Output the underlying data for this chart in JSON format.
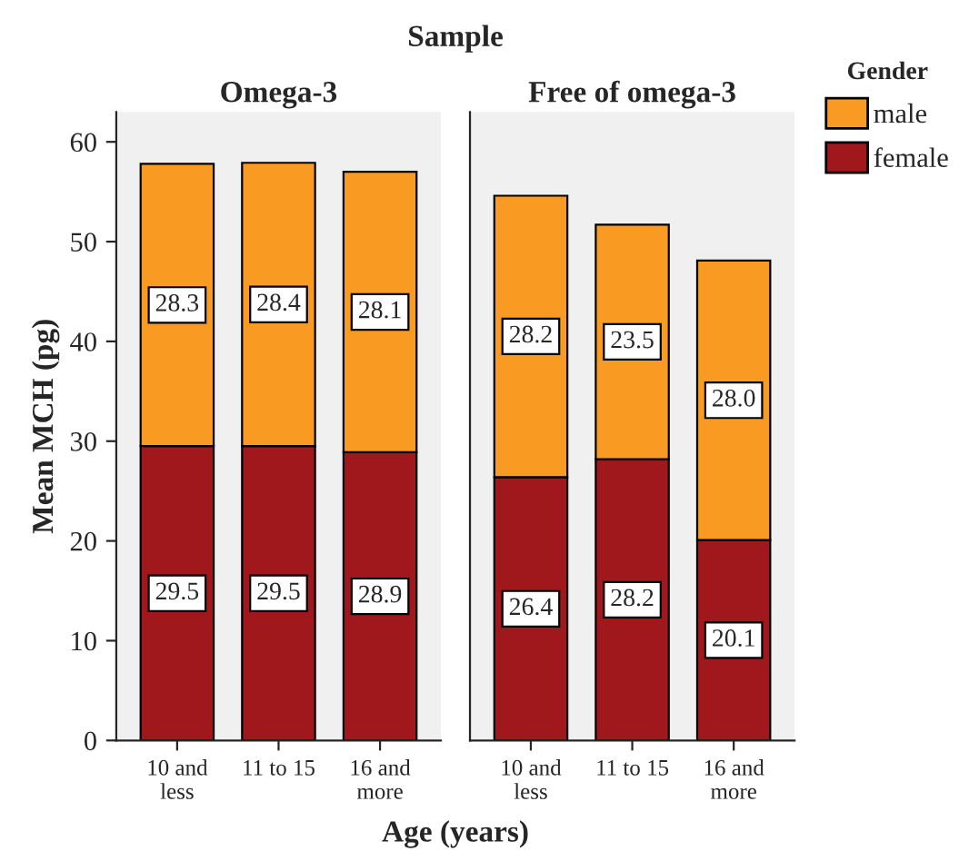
{
  "chart_data": [
    {
      "type": "bar",
      "title": "Omega-3",
      "annotations": [
        "Sample"
      ],
      "xlabel": "Age (years)",
      "ylabel": "Mean MCH (pg)",
      "stacked": true,
      "data_labels": true,
      "grid": false,
      "categories": [
        "10 and\nless",
        "11 to 15",
        "16 and\nmore"
      ],
      "ylim": [
        0,
        63
      ],
      "yticks": [
        0,
        10,
        20,
        30,
        40,
        50,
        60
      ],
      "series": [
        {
          "color": "#a0181c",
          "values": [
            29.5,
            29.5,
            28.9
          ]
        },
        {
          "color": "#f99a22",
          "values": [
            28.3,
            28.4,
            28.1
          ]
        }
      ]
    },
    {
      "type": "bar",
      "title": "Free of omega-3",
      "legend_title": "Gender",
      "stacked": true,
      "data_labels": true,
      "grid": false,
      "legend": "right",
      "tick_labels": "x",
      "categories": [
        "10 and\nless",
        "11 to 15",
        "16 and\nmore"
      ],
      "ylim": [
        0,
        63
      ],
      "yticks": [
        0,
        10,
        20,
        30,
        40,
        50,
        60
      ],
      "series": [
        {
          "name": "female",
          "color": "#a0181c",
          "values": [
            26.4,
            28.2,
            20.1
          ]
        },
        {
          "name": "male",
          "color": "#f99a22",
          "values": [
            28.2,
            23.5,
            28.0
          ],
          "value_labels": [
            "28.2",
            "23.5",
            "28.0"
          ]
        }
      ]
    }
  ]
}
